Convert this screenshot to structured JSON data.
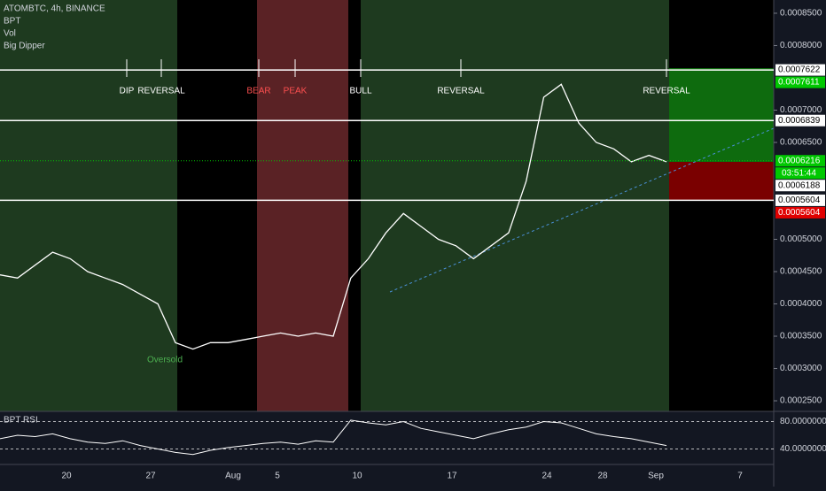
{
  "header": {
    "symbol": "ATOMBTC, 4h, BINANCE",
    "indicators": [
      "BPT",
      "Vol",
      "Big Dipper"
    ]
  },
  "chart_data": {
    "type": "line",
    "series": [
      {
        "color": "#ffffff",
        "values": [
          0.000445,
          0.00044,
          0.00046,
          0.00048,
          0.00047,
          0.00045,
          0.00044,
          0.00043,
          0.000415,
          0.0004,
          0.00034,
          0.00033,
          0.00034,
          0.00034,
          0.000345,
          0.00035,
          0.000355,
          0.00035,
          0.000355,
          0.00035,
          0.00044,
          0.00047,
          0.00051,
          0.00054,
          0.00052,
          0.0005,
          0.00049,
          0.00047,
          0.00049,
          0.00051,
          0.00059,
          0.00072,
          0.00074,
          0.00068,
          0.00065,
          0.00064,
          0.00062,
          0.00063,
          0.00062
        ]
      }
    ],
    "ylim": [
      0.0002336,
      0.0008705
    ],
    "yticks": [
      {
        "value": 0.00085,
        "label": "0.0008500"
      },
      {
        "value": 0.0008,
        "label": "0.0008000"
      },
      {
        "value": 0.0007,
        "label": "0.0007000"
      },
      {
        "value": 0.00065,
        "label": "0.0006500"
      },
      {
        "value": 0.0005,
        "label": "0.0005000"
      },
      {
        "value": 0.00045,
        "label": "0.0004500"
      },
      {
        "value": 0.0004,
        "label": "0.0004000"
      },
      {
        "value": 0.00035,
        "label": "0.0003500"
      },
      {
        "value": 0.0003,
        "label": "0.0003000"
      },
      {
        "value": 0.00025,
        "label": "0.0002500"
      }
    ],
    "levels": [
      {
        "value": 0.0007622,
        "label": "0.0007622",
        "color": "#ffffff",
        "line": true
      },
      {
        "value": 0.0007611,
        "label": "0.0007611",
        "color": "#00c800",
        "line": false
      },
      {
        "value": 0.0006839,
        "label": "0.0006839",
        "color": "#ffffff",
        "line": true
      },
      {
        "value": 0.0006216,
        "label": "0.0006216",
        "color": "#00c800",
        "line": false
      },
      {
        "value": 0.0006188,
        "label": "0.0006188",
        "color": "#ffffff",
        "line": false
      },
      {
        "value": 0.0005604,
        "label": "0.0005604",
        "color": "#ffffff",
        "line": true
      },
      {
        "value": 0.0005604,
        "label": "0.0005604",
        "color": "#e00000",
        "line": false
      }
    ],
    "countdown": "03:51:44",
    "annotations": [
      {
        "text": "DIP",
        "color": "#ffffff"
      },
      {
        "text": "REVERSAL",
        "color": "#ffffff"
      },
      {
        "text": "BEAR",
        "color": "#ff5050"
      },
      {
        "text": "PEAK",
        "color": "#ff5050"
      },
      {
        "text": "BULL",
        "color": "#ffffff"
      },
      {
        "text": "REVERSAL",
        "color": "#ffffff"
      },
      {
        "text": "REVERSAL",
        "color": "#ffffff"
      }
    ],
    "oversold": "Oversold",
    "xticks": [
      "20",
      "27",
      "Aug",
      "5",
      "10",
      "17",
      "24",
      "28",
      "Sep",
      "7"
    ]
  },
  "rsi": {
    "title": "BPT RSI",
    "ylim": [
      17.4,
      94.8
    ],
    "yticks": [
      {
        "value": 80,
        "label": "80.0000000"
      },
      {
        "value": 40,
        "label": "40.0000000"
      }
    ],
    "values": [
      55,
      60,
      58,
      62,
      55,
      50,
      48,
      52,
      45,
      40,
      35,
      32,
      38,
      42,
      45,
      48,
      50,
      47,
      52,
      50,
      82,
      78,
      75,
      80,
      70,
      65,
      60,
      55,
      62,
      68,
      72,
      80,
      78,
      70,
      62,
      58,
      55,
      50,
      45
    ]
  }
}
